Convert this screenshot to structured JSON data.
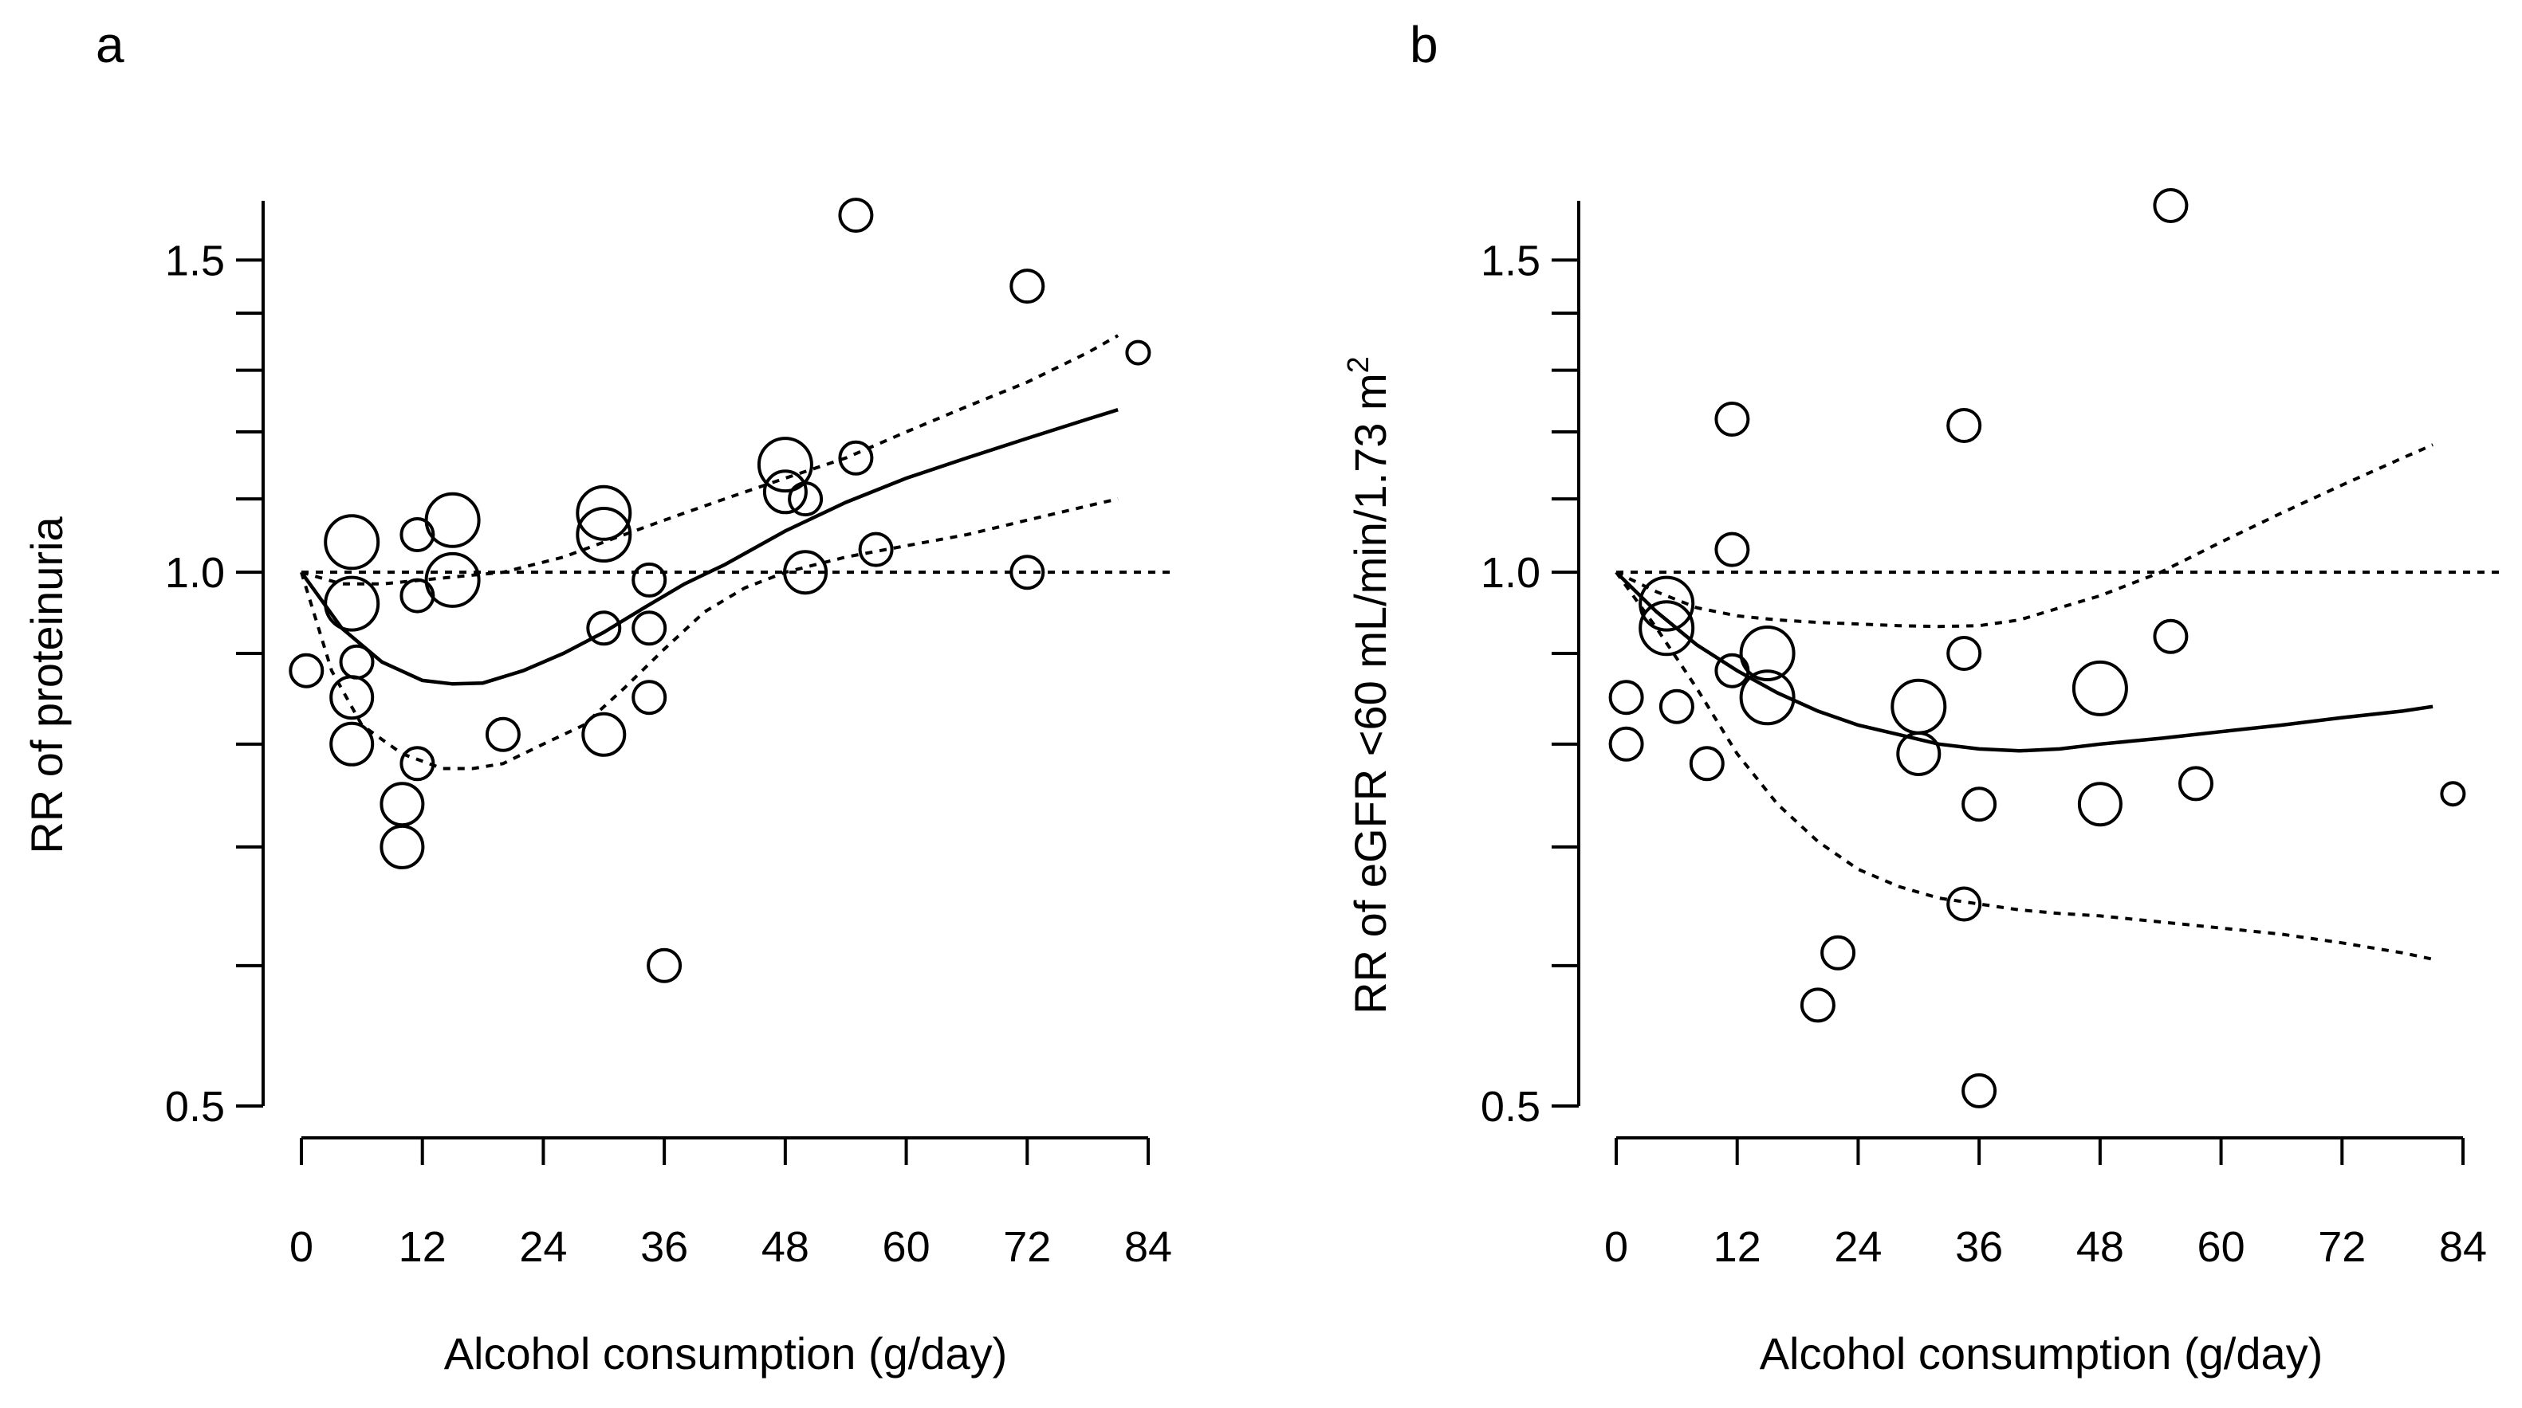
{
  "chart_data": [
    {
      "type": "scatter",
      "panel_label": "a",
      "title": "",
      "xlabel": "Alcohol consumption (g/day)",
      "ylabel": "RR of proteinuria",
      "ylabel_sup": "",
      "x_scale": "linear",
      "y_scale": "log",
      "xlim": [
        0,
        84
      ],
      "ylim": [
        0.5,
        1.62
      ],
      "x_ticks": [
        0,
        12,
        24,
        36,
        48,
        60,
        72,
        84
      ],
      "y_ticks": [
        0.5,
        0.6,
        0.7,
        0.8,
        0.9,
        1.0,
        1.1,
        1.2,
        1.3,
        1.4,
        1.5
      ],
      "y_tick_labels": [
        {
          "value": 0.5,
          "label": "0.5"
        },
        {
          "value": 1.0,
          "label": "1.0"
        },
        {
          "value": 1.5,
          "label": "1.5"
        }
      ],
      "reference_line": 1.0,
      "points": [
        {
          "x": 0.5,
          "y": 0.88,
          "size": 1
        },
        {
          "x": 5,
          "y": 1.04,
          "size": 3
        },
        {
          "x": 5,
          "y": 0.96,
          "size": 3
        },
        {
          "x": 5,
          "y": 0.85,
          "size": 2
        },
        {
          "x": 5,
          "y": 0.8,
          "size": 2
        },
        {
          "x": 5.5,
          "y": 0.89,
          "size": 1
        },
        {
          "x": 10,
          "y": 0.74,
          "size": 2
        },
        {
          "x": 10,
          "y": 0.7,
          "size": 2
        },
        {
          "x": 11.5,
          "y": 0.78,
          "size": 1
        },
        {
          "x": 11.5,
          "y": 1.05,
          "size": 1
        },
        {
          "x": 11.5,
          "y": 0.97,
          "size": 1
        },
        {
          "x": 15,
          "y": 1.07,
          "size": 3
        },
        {
          "x": 15,
          "y": 0.99,
          "size": 3
        },
        {
          "x": 20,
          "y": 0.81,
          "size": 1
        },
        {
          "x": 30,
          "y": 1.08,
          "size": 3
        },
        {
          "x": 30,
          "y": 1.05,
          "size": 3
        },
        {
          "x": 30,
          "y": 0.93,
          "size": 1
        },
        {
          "x": 30,
          "y": 0.81,
          "size": 2
        },
        {
          "x": 34.5,
          "y": 0.99,
          "size": 1
        },
        {
          "x": 34.5,
          "y": 0.93,
          "size": 1
        },
        {
          "x": 34.5,
          "y": 0.85,
          "size": 1
        },
        {
          "x": 36,
          "y": 0.6,
          "size": 1
        },
        {
          "x": 48,
          "y": 1.15,
          "size": 3
        },
        {
          "x": 48,
          "y": 1.11,
          "size": 2
        },
        {
          "x": 50,
          "y": 1.1,
          "size": 1
        },
        {
          "x": 50,
          "y": 1.0,
          "size": 2
        },
        {
          "x": 55,
          "y": 1.59,
          "size": 1
        },
        {
          "x": 55,
          "y": 1.16,
          "size": 1
        },
        {
          "x": 57,
          "y": 1.03,
          "size": 1
        },
        {
          "x": 72,
          "y": 1.45,
          "size": 1
        },
        {
          "x": 72,
          "y": 1.0,
          "size": 1
        },
        {
          "x": 83,
          "y": 1.33,
          "size": 0
        }
      ],
      "fit": {
        "x": [
          0,
          4,
          8,
          12,
          15,
          18,
          22,
          26,
          30,
          34,
          38,
          42,
          48,
          54,
          60,
          66,
          72,
          78,
          81
        ],
        "y": [
          1.0,
          0.93,
          0.89,
          0.869,
          0.865,
          0.866,
          0.88,
          0.9,
          0.925,
          0.955,
          0.985,
          1.01,
          1.055,
          1.095,
          1.13,
          1.16,
          1.19,
          1.22,
          1.235
        ]
      },
      "ci_upper": {
        "x": [
          0,
          4,
          8,
          12,
          16,
          20,
          26,
          30,
          34,
          38,
          42,
          48,
          54,
          60,
          66,
          72,
          78,
          81
        ],
        "y": [
          1.0,
          0.985,
          0.985,
          0.99,
          0.995,
          1.0,
          1.02,
          1.04,
          1.06,
          1.08,
          1.1,
          1.13,
          1.16,
          1.2,
          1.24,
          1.28,
          1.33,
          1.36
        ]
      },
      "ci_lower": {
        "x": [
          0,
          3,
          6,
          10,
          14,
          17,
          20,
          24,
          28,
          32,
          36,
          40,
          44,
          48,
          54,
          60,
          66,
          72,
          78,
          81
        ],
        "y": [
          1.0,
          0.88,
          0.82,
          0.79,
          0.775,
          0.775,
          0.78,
          0.8,
          0.82,
          0.86,
          0.905,
          0.95,
          0.98,
          1.0,
          1.02,
          1.035,
          1.05,
          1.07,
          1.09,
          1.1
        ]
      }
    },
    {
      "type": "scatter",
      "panel_label": "b",
      "title": "",
      "xlabel": "Alcohol consumption (g/day)",
      "ylabel": "RR of eGFR <60 mL/min/1.73 m",
      "ylabel_sup": "2",
      "x_scale": "linear",
      "y_scale": "log",
      "xlim": [
        0,
        84
      ],
      "ylim": [
        0.5,
        1.62
      ],
      "x_ticks": [
        0,
        12,
        24,
        36,
        48,
        60,
        72,
        84
      ],
      "y_ticks": [
        0.5,
        0.6,
        0.7,
        0.8,
        0.9,
        1.0,
        1.1,
        1.2,
        1.3,
        1.4,
        1.5
      ],
      "y_tick_labels": [
        {
          "value": 0.5,
          "label": "0.5"
        },
        {
          "value": 1.0,
          "label": "1.0"
        },
        {
          "value": 1.5,
          "label": "1.5"
        }
      ],
      "reference_line": 1.0,
      "points": [
        {
          "x": 1,
          "y": 0.85,
          "size": 1
        },
        {
          "x": 1,
          "y": 0.8,
          "size": 1
        },
        {
          "x": 5,
          "y": 0.96,
          "size": 3
        },
        {
          "x": 5,
          "y": 0.93,
          "size": 3
        },
        {
          "x": 6,
          "y": 0.84,
          "size": 1
        },
        {
          "x": 9,
          "y": 0.78,
          "size": 1
        },
        {
          "x": 11.5,
          "y": 1.22,
          "size": 1
        },
        {
          "x": 11.5,
          "y": 1.03,
          "size": 1
        },
        {
          "x": 11.5,
          "y": 0.88,
          "size": 1
        },
        {
          "x": 15,
          "y": 0.9,
          "size": 3
        },
        {
          "x": 15,
          "y": 0.85,
          "size": 3
        },
        {
          "x": 20,
          "y": 0.57,
          "size": 1
        },
        {
          "x": 22,
          "y": 0.61,
          "size": 1
        },
        {
          "x": 30,
          "y": 0.84,
          "size": 3
        },
        {
          "x": 30,
          "y": 0.79,
          "size": 2
        },
        {
          "x": 34.5,
          "y": 1.21,
          "size": 1
        },
        {
          "x": 34.5,
          "y": 0.9,
          "size": 1
        },
        {
          "x": 34.5,
          "y": 0.65,
          "size": 1
        },
        {
          "x": 36,
          "y": 0.74,
          "size": 1
        },
        {
          "x": 36,
          "y": 0.51,
          "size": 1
        },
        {
          "x": 48,
          "y": 0.86,
          "size": 3
        },
        {
          "x": 48,
          "y": 0.74,
          "size": 2
        },
        {
          "x": 55,
          "y": 1.61,
          "size": 1
        },
        {
          "x": 55,
          "y": 0.92,
          "size": 1
        },
        {
          "x": 57.5,
          "y": 0.76,
          "size": 1
        },
        {
          "x": 83,
          "y": 0.75,
          "size": 0
        }
      ],
      "fit": {
        "x": [
          0,
          4,
          8,
          12,
          16,
          20,
          24,
          28,
          32,
          36,
          40,
          44,
          48,
          54,
          60,
          66,
          72,
          78,
          81
        ],
        "y": [
          1.0,
          0.95,
          0.91,
          0.88,
          0.855,
          0.835,
          0.82,
          0.81,
          0.8,
          0.795,
          0.793,
          0.795,
          0.8,
          0.806,
          0.813,
          0.82,
          0.828,
          0.835,
          0.84
        ]
      },
      "ci_upper": {
        "x": [
          0,
          4,
          8,
          12,
          16,
          20,
          24,
          28,
          32,
          36,
          40,
          44,
          48,
          54,
          60,
          66,
          72,
          78,
          81
        ],
        "y": [
          1.0,
          0.975,
          0.955,
          0.945,
          0.94,
          0.937,
          0.935,
          0.933,
          0.932,
          0.933,
          0.94,
          0.955,
          0.97,
          1.0,
          1.04,
          1.08,
          1.12,
          1.16,
          1.18
        ]
      },
      "ci_lower": {
        "x": [
          0,
          4,
          8,
          12,
          16,
          20,
          24,
          28,
          32,
          36,
          40,
          44,
          48,
          54,
          60,
          66,
          72,
          78,
          81
        ],
        "y": [
          1.0,
          0.93,
          0.86,
          0.79,
          0.74,
          0.705,
          0.68,
          0.665,
          0.655,
          0.65,
          0.645,
          0.642,
          0.64,
          0.635,
          0.63,
          0.625,
          0.618,
          0.61,
          0.605
        ]
      }
    }
  ]
}
